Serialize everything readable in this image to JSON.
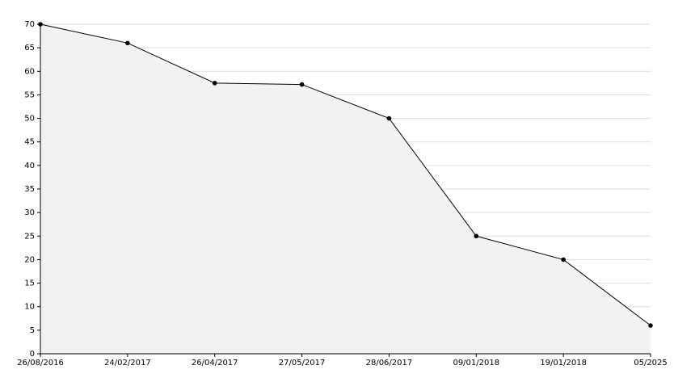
{
  "chart_data": {
    "type": "area",
    "categories": [
      "26/08/2016",
      "24/02/2017",
      "26/04/2017",
      "27/05/2017",
      "28/06/2017",
      "09/01/2018",
      "19/01/2018",
      "05/2025"
    ],
    "values": [
      70,
      66,
      57.5,
      57.2,
      50,
      25,
      20,
      6
    ],
    "color": "#000000",
    "fill": "#f2f2f2",
    "ylim": [
      0,
      70
    ],
    "yticks": [
      0,
      5,
      10,
      15,
      20,
      25,
      30,
      35,
      40,
      45,
      50,
      55,
      60,
      65,
      70
    ],
    "grid": true
  }
}
